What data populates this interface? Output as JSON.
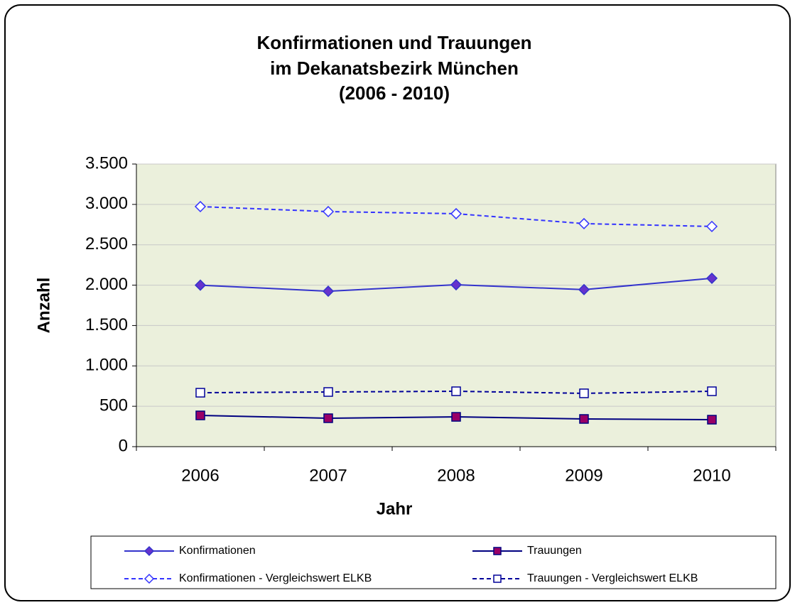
{
  "chart_data": {
    "type": "line",
    "title": [
      "Konfirmationen und Trauungen",
      "im Dekanatsbezirk München",
      "(2006 - 2010)"
    ],
    "x_label": "Jahr",
    "y_label": "Anzahl",
    "categories": [
      "2006",
      "2007",
      "2008",
      "2009",
      "2010"
    ],
    "series": [
      {
        "name": "Konfirmationen",
        "color": "#3333cc",
        "line_style": "solid",
        "marker": "diamond",
        "marker_fill": "#6633cc",
        "values": [
          2000,
          1925,
          2005,
          1945,
          2085
        ]
      },
      {
        "name": "Trauungen",
        "color": "#000080",
        "line_style": "solid",
        "marker": "square",
        "marker_fill": "#990066",
        "values": [
          387,
          352,
          369,
          343,
          334
        ]
      },
      {
        "name": "Konfirmationen - Vergleichswert ELKB",
        "color": "#3333ff",
        "line_style": "dashed",
        "marker": "diamond",
        "marker_fill": "#ffffff",
        "values": [
          2973,
          2911,
          2885,
          2762,
          2727
        ]
      },
      {
        "name": "Trauungen - Vergleichswert ELKB",
        "color": "#000099",
        "line_style": "dashed",
        "marker": "square",
        "marker_fill": "#ffffff",
        "values": [
          668,
          677,
          686,
          660,
          686
        ]
      }
    ],
    "ylim": [
      0,
      3500
    ],
    "yticks": [
      0,
      500,
      {
        "value": 1000,
        "label": "1.000"
      },
      {
        "value": 1500,
        "label": "1.500"
      },
      {
        "value": 2000,
        "label": "2.000"
      },
      {
        "value": 2500,
        "label": "2.500"
      },
      {
        "value": 3000,
        "label": "3.000"
      },
      {
        "value": 3500,
        "label": "3.500"
      }
    ],
    "grid": true,
    "legend": "bottom",
    "plot_background": "#ebf0dc"
  }
}
